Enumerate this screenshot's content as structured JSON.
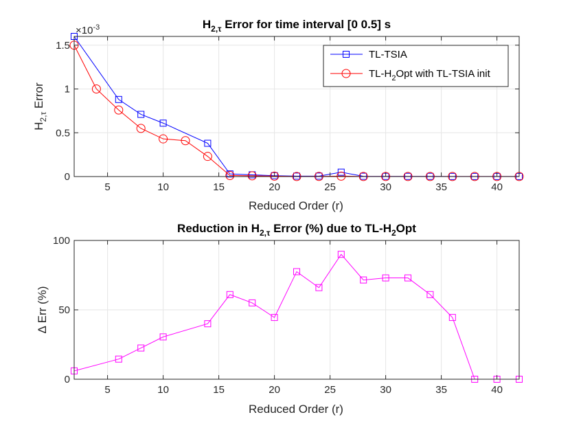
{
  "chart_data": [
    {
      "type": "line",
      "title": {
        "prefix": "H",
        "sub": "2,τ",
        "suffix": " Error for time interval [0 0.5] s"
      },
      "xlabel": "Reduced Order (r)",
      "ylabel": {
        "prefix": "H",
        "sub": "2,τ",
        "suffix": "  Error"
      },
      "exponent_label": {
        "base": "×10",
        "exp": "-3"
      },
      "xlim": [
        2,
        42
      ],
      "ylim": [
        0,
        1.6
      ],
      "xticks": [
        5,
        10,
        15,
        20,
        25,
        30,
        35,
        40
      ],
      "yticks": [
        0,
        0.5,
        1,
        1.5
      ],
      "ytick_labels": [
        "0",
        "0.5",
        "1",
        "1.5"
      ],
      "grid": true,
      "legend_position": "top-right",
      "series": [
        {
          "name": "TL-TSIA",
          "legend": {
            "text": "TL-TSIA"
          },
          "marker": "square",
          "color": "#0000ff",
          "x": [
            2,
            6,
            8,
            10,
            14,
            16,
            18,
            20,
            22,
            24,
            26,
            28,
            30,
            32,
            34,
            36,
            38,
            40,
            42
          ],
          "y": [
            1.6,
            0.88,
            0.71,
            0.61,
            0.38,
            0.03,
            0.02,
            0.01,
            0.005,
            0.005,
            0.05,
            0.003,
            0.002,
            0.002,
            0.002,
            0.001,
            0.001,
            0.001,
            0.001
          ]
        },
        {
          "name": "TL-H2Opt with TL-TSIA init",
          "legend": {
            "prefix": "TL-H",
            "sub": "2",
            "suffix": "Opt with TL-TSIA init"
          },
          "marker": "circle",
          "color": "#ff0000",
          "x": [
            2,
            4,
            6,
            8,
            10,
            12,
            14,
            16,
            18,
            20,
            22,
            24,
            26,
            28,
            30,
            32,
            34,
            36,
            38,
            40,
            42
          ],
          "y": [
            1.5,
            1.0,
            0.76,
            0.55,
            0.43,
            0.41,
            0.23,
            0.012,
            0.009,
            0.005,
            0.001,
            0.002,
            0.005,
            0.001,
            0.001,
            0.001,
            0.001,
            0.001,
            0.001,
            0.001,
            0.001
          ]
        }
      ]
    },
    {
      "type": "line",
      "title": {
        "a": "Reduction in H",
        "sub1": "2,τ",
        "b": " Error (%) due to TL-H",
        "sub2": "2",
        "c": "Opt"
      },
      "xlabel": "Reduced Order (r)",
      "ylabel": "Δ Err (%)",
      "xlim": [
        2,
        42
      ],
      "ylim": [
        0,
        100
      ],
      "xticks": [
        5,
        10,
        15,
        20,
        25,
        30,
        35,
        40
      ],
      "yticks": [
        0,
        50,
        100
      ],
      "grid": true,
      "series": [
        {
          "name": "Reduction",
          "marker": "square",
          "color": "#ff00ff",
          "x": [
            2,
            6,
            8,
            10,
            14,
            16,
            18,
            20,
            22,
            24,
            26,
            28,
            30,
            32,
            34,
            36,
            38,
            40,
            42
          ],
          "y": [
            6,
            14.5,
            22.5,
            30.5,
            40,
            61,
            55,
            44.5,
            77.5,
            66,
            90,
            71.5,
            73,
            73,
            61,
            44.5,
            0,
            0,
            0
          ]
        }
      ]
    }
  ]
}
